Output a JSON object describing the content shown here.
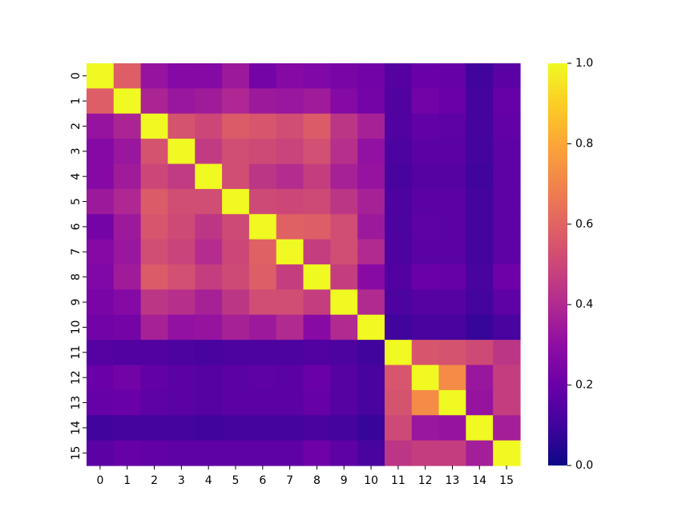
{
  "chart_data": {
    "type": "heatmap",
    "title": "",
    "xlabel": "",
    "ylabel": "",
    "x_categories": [
      "0",
      "1",
      "2",
      "3",
      "4",
      "5",
      "6",
      "7",
      "8",
      "9",
      "10",
      "11",
      "12",
      "13",
      "14",
      "15"
    ],
    "y_categories": [
      "0",
      "1",
      "2",
      "3",
      "4",
      "5",
      "6",
      "7",
      "8",
      "9",
      "10",
      "11",
      "12",
      "13",
      "14",
      "15"
    ],
    "colormap": "plasma",
    "vmin": 0.0,
    "vmax": 1.0,
    "colorbar_ticks": [
      "0.0",
      "0.2",
      "0.4",
      "0.6",
      "0.8",
      "1.0"
    ],
    "matrix": [
      [
        1.0,
        0.58,
        0.32,
        0.27,
        0.27,
        0.34,
        0.23,
        0.27,
        0.26,
        0.24,
        0.22,
        0.15,
        0.2,
        0.19,
        0.1,
        0.16
      ],
      [
        0.58,
        1.0,
        0.38,
        0.33,
        0.35,
        0.39,
        0.34,
        0.33,
        0.35,
        0.27,
        0.23,
        0.14,
        0.22,
        0.2,
        0.11,
        0.19
      ],
      [
        0.32,
        0.38,
        1.0,
        0.54,
        0.5,
        0.57,
        0.55,
        0.52,
        0.57,
        0.44,
        0.37,
        0.14,
        0.18,
        0.17,
        0.11,
        0.18
      ],
      [
        0.27,
        0.33,
        0.54,
        1.0,
        0.46,
        0.52,
        0.51,
        0.49,
        0.53,
        0.42,
        0.31,
        0.13,
        0.16,
        0.16,
        0.11,
        0.17
      ],
      [
        0.27,
        0.35,
        0.5,
        0.46,
        1.0,
        0.52,
        0.44,
        0.41,
        0.47,
        0.37,
        0.32,
        0.12,
        0.15,
        0.15,
        0.1,
        0.17
      ],
      [
        0.34,
        0.39,
        0.57,
        0.52,
        0.52,
        1.0,
        0.51,
        0.5,
        0.51,
        0.44,
        0.37,
        0.13,
        0.16,
        0.16,
        0.11,
        0.17
      ],
      [
        0.23,
        0.34,
        0.55,
        0.51,
        0.44,
        0.51,
        1.0,
        0.59,
        0.58,
        0.52,
        0.34,
        0.13,
        0.17,
        0.16,
        0.11,
        0.17
      ],
      [
        0.27,
        0.33,
        0.52,
        0.49,
        0.41,
        0.5,
        0.59,
        1.0,
        0.47,
        0.52,
        0.4,
        0.13,
        0.16,
        0.16,
        0.11,
        0.17
      ],
      [
        0.26,
        0.35,
        0.57,
        0.53,
        0.47,
        0.51,
        0.58,
        0.47,
        1.0,
        0.47,
        0.28,
        0.14,
        0.2,
        0.19,
        0.12,
        0.21
      ],
      [
        0.24,
        0.27,
        0.44,
        0.42,
        0.37,
        0.44,
        0.52,
        0.52,
        0.47,
        1.0,
        0.4,
        0.13,
        0.15,
        0.15,
        0.11,
        0.17
      ],
      [
        0.22,
        0.23,
        0.37,
        0.31,
        0.32,
        0.37,
        0.34,
        0.4,
        0.28,
        0.4,
        1.0,
        0.1,
        0.12,
        0.12,
        0.08,
        0.12
      ],
      [
        0.15,
        0.14,
        0.14,
        0.13,
        0.12,
        0.13,
        0.13,
        0.13,
        0.14,
        0.13,
        0.1,
        1.0,
        0.55,
        0.54,
        0.51,
        0.44
      ],
      [
        0.2,
        0.22,
        0.18,
        0.16,
        0.15,
        0.16,
        0.17,
        0.16,
        0.2,
        0.15,
        0.12,
        0.55,
        1.0,
        0.72,
        0.33,
        0.47
      ],
      [
        0.19,
        0.2,
        0.17,
        0.16,
        0.15,
        0.16,
        0.16,
        0.16,
        0.19,
        0.15,
        0.12,
        0.54,
        0.72,
        1.0,
        0.32,
        0.47
      ],
      [
        0.1,
        0.11,
        0.11,
        0.11,
        0.1,
        0.11,
        0.11,
        0.11,
        0.12,
        0.11,
        0.08,
        0.51,
        0.33,
        0.32,
        1.0,
        0.36
      ],
      [
        0.16,
        0.19,
        0.18,
        0.17,
        0.17,
        0.17,
        0.17,
        0.17,
        0.21,
        0.17,
        0.12,
        0.44,
        0.47,
        0.47,
        0.36,
        1.0
      ]
    ]
  }
}
